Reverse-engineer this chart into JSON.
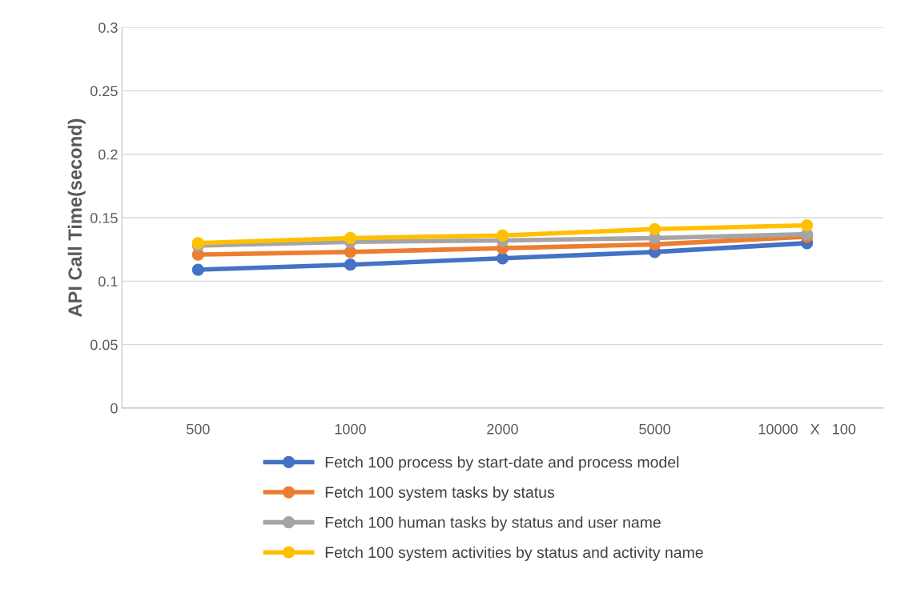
{
  "chart_data": {
    "type": "line",
    "ylabel": "API Call Time(second)",
    "categories": [
      "500",
      "1000",
      "2000",
      "5000",
      "10000   X   100"
    ],
    "series": [
      {
        "name": "Fetch 100 process by start-date and process model",
        "color": "#4472c4",
        "values": [
          0.109,
          0.113,
          0.118,
          0.123,
          0.13
        ]
      },
      {
        "name": "Fetch 100 system tasks by status",
        "color": "#ed7d31",
        "values": [
          0.121,
          0.123,
          0.126,
          0.129,
          0.135
        ]
      },
      {
        "name": "Fetch 100 human tasks by status and user name",
        "color": "#a5a5a5",
        "values": [
          0.128,
          0.131,
          0.132,
          0.134,
          0.137
        ]
      },
      {
        "name": "Fetch 100 system activities by status and activity name",
        "color": "#ffc000",
        "values": [
          0.13,
          0.134,
          0.136,
          0.141,
          0.144
        ]
      }
    ],
    "ylim": [
      0,
      0.3
    ],
    "yticks": [
      0,
      0.05,
      0.1,
      0.15,
      0.2,
      0.25,
      0.3
    ],
    "grid": "y",
    "legend": "bottom",
    "marker": "circle",
    "line_style": "solid"
  }
}
